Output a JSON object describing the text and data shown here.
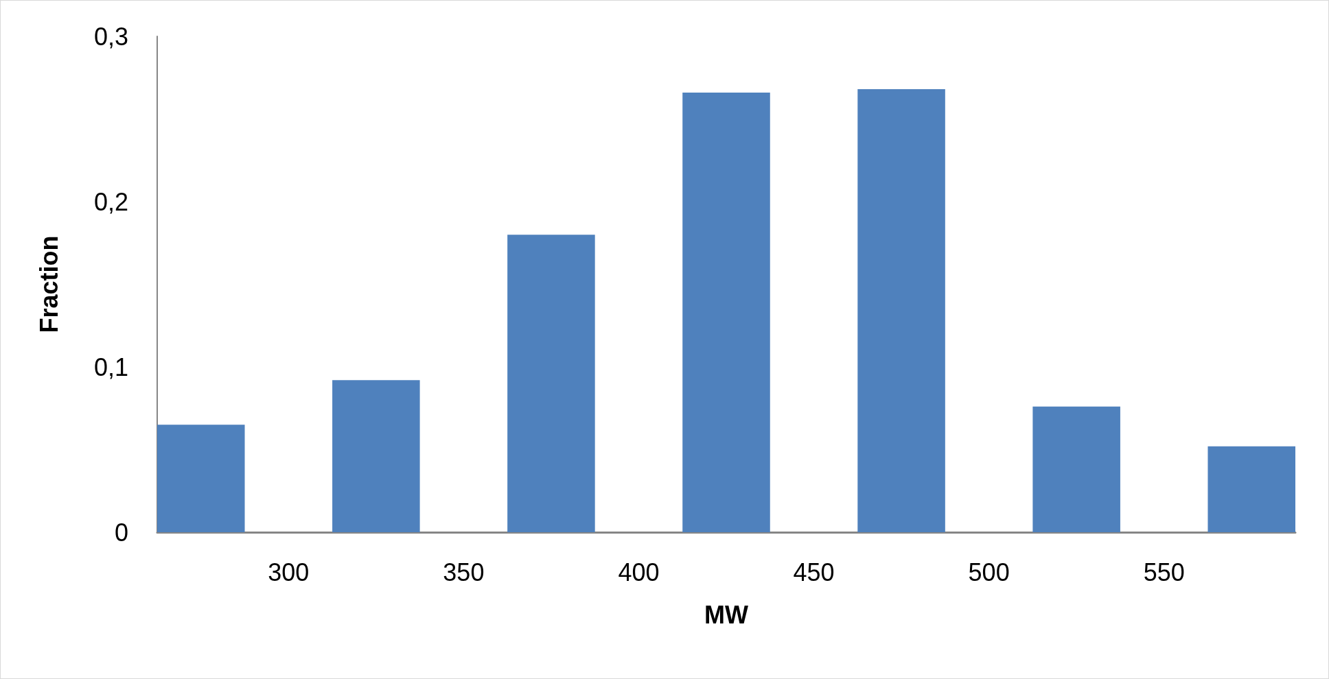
{
  "chart_data": {
    "type": "bar",
    "xlabel": "MW",
    "ylabel": "Fraction",
    "x": [
      275,
      325,
      375,
      425,
      475,
      525,
      575
    ],
    "values": [
      0.065,
      0.092,
      0.18,
      0.266,
      0.268,
      0.076,
      0.052
    ],
    "color": "#4f81bd",
    "xlim": [
      262.5,
      587.5
    ],
    "xticks": [
      300,
      350,
      400,
      450,
      500,
      550
    ],
    "ylim": [
      0,
      0.3
    ],
    "yticks": [
      0,
      {
        "value": 0.1,
        "label": "0,1"
      },
      {
        "value": 0.2,
        "label": "0,2"
      },
      {
        "value": 0.3,
        "label": "0,3"
      }
    ]
  }
}
